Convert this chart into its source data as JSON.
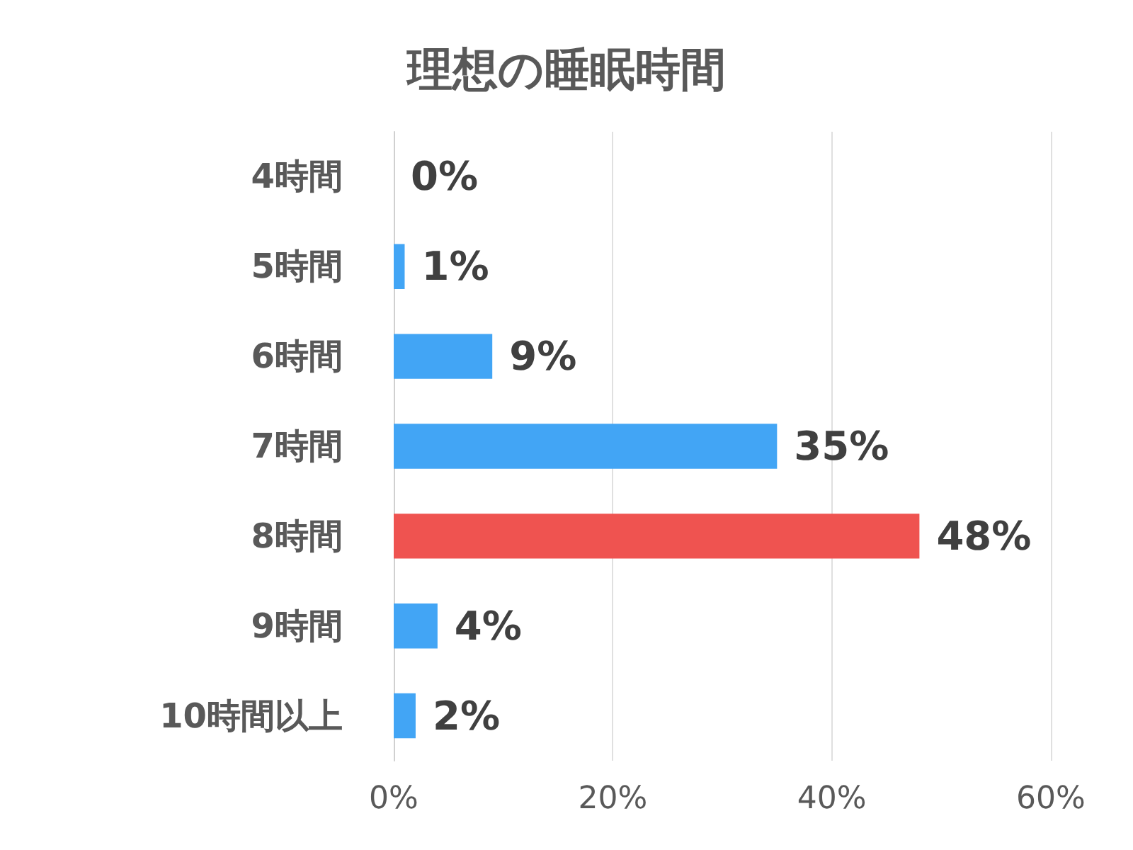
{
  "chart_data": {
    "type": "bar",
    "orientation": "horizontal",
    "title": "理想の睡眠時間",
    "categories": [
      "4時間",
      "5時間",
      "6時間",
      "7時間",
      "8時間",
      "9時間",
      "10時間以上"
    ],
    "values": [
      0,
      1,
      9,
      35,
      48,
      4,
      2
    ],
    "colors": [
      "#42a5f5",
      "#42a5f5",
      "#42a5f5",
      "#42a5f5",
      "#ef5350",
      "#42a5f5",
      "#42a5f5"
    ],
    "value_labels": [
      "0%",
      "1%",
      "9%",
      "35%",
      "48%",
      "4%",
      "2%"
    ],
    "xlim": [
      0,
      60
    ],
    "xticks": [
      {
        "value": 0,
        "label": "0%"
      },
      {
        "value": 20,
        "label": "20%"
      },
      {
        "value": 40,
        "label": "40%"
      },
      {
        "value": 60,
        "label": "60%"
      }
    ],
    "grid": "x"
  }
}
